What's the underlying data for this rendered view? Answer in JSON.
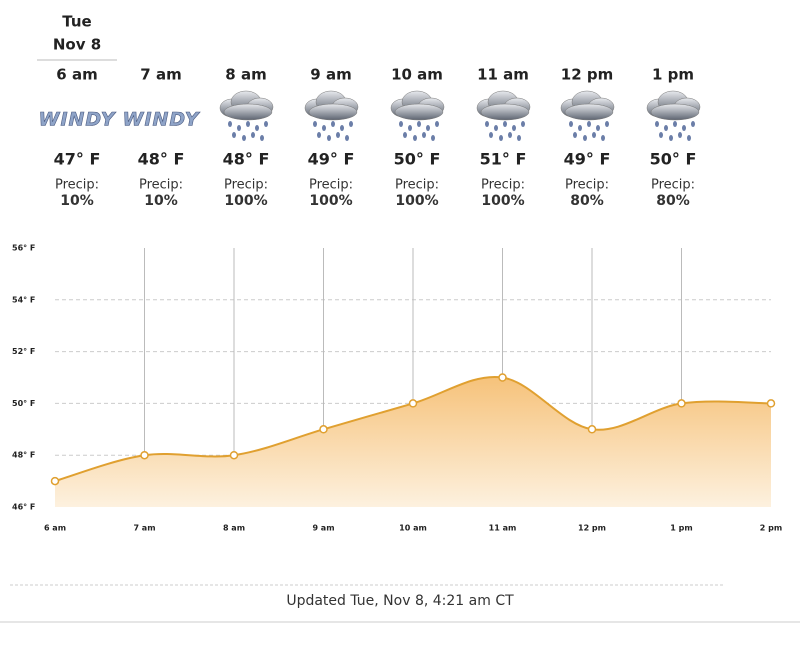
{
  "header": {
    "day": "Tue",
    "date": "Nov 8"
  },
  "hours": [
    {
      "time": "6 am",
      "icon_text": "WINDY",
      "temp": "47° F",
      "precip_label": "Precip:",
      "precip": "10%"
    },
    {
      "time": "7 am",
      "icon_text": "WINDY",
      "temp": "48° F",
      "precip_label": "Precip:",
      "precip": "10%"
    },
    {
      "time": "8 am",
      "temp": "48° F",
      "precip_label": "Precip:",
      "precip": "100%"
    },
    {
      "time": "9 am",
      "temp": "49° F",
      "precip_label": "Precip:",
      "precip": "100%"
    },
    {
      "time": "10 am",
      "temp": "50° F",
      "precip_label": "Precip:",
      "precip": "100%"
    },
    {
      "time": "11 am",
      "temp": "51° F",
      "precip_label": "Precip:",
      "precip": "100%"
    },
    {
      "time": "12 pm",
      "temp": "49° F",
      "precip_label": "Precip:",
      "precip": "80%"
    },
    {
      "time": "1 pm",
      "temp": "50° F",
      "precip_label": "Precip:",
      "precip": "80%"
    }
  ],
  "chart_data": {
    "type": "area",
    "categories": [
      "6 am",
      "7 am",
      "8 am",
      "9 am",
      "10 am",
      "11 am",
      "12 pm",
      "1 pm",
      "2 pm"
    ],
    "values": [
      47,
      48,
      48,
      49,
      50,
      51,
      49,
      50,
      50
    ],
    "color": "#e0a030",
    "ylim": [
      46,
      56
    ],
    "yticks": [
      {
        "value": 46,
        "label": "46° F"
      },
      {
        "value": 48,
        "label": "48° F"
      },
      {
        "value": 50,
        "label": "50° F"
      },
      {
        "value": 52,
        "label": "52° F"
      },
      {
        "value": 54,
        "label": "54° F"
      },
      {
        "value": 56,
        "label": "56° F"
      }
    ],
    "grid": true
  },
  "footer": {
    "updated": "Updated Tue, Nov 8, 4:21 am CT"
  }
}
